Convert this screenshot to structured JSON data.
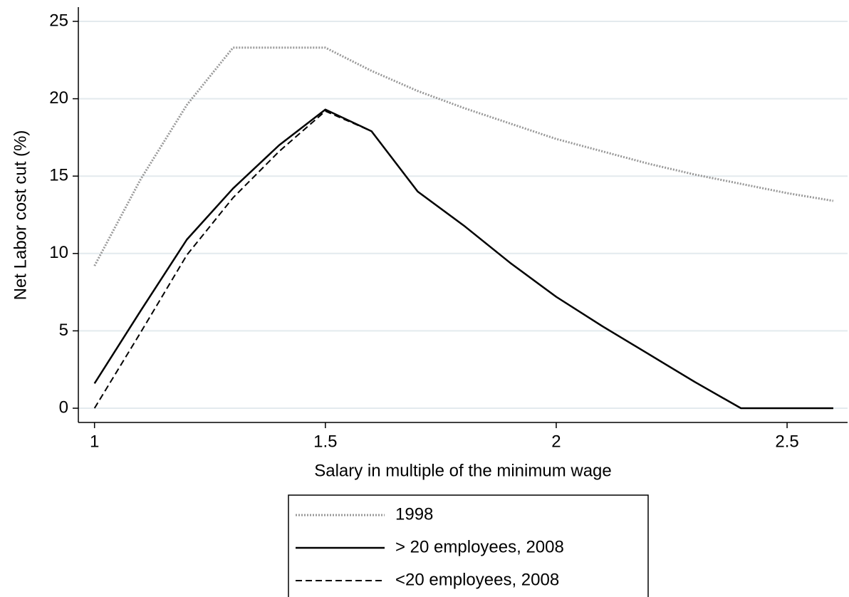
{
  "chart_data": {
    "type": "line",
    "x_label": "Salary in multiple of the minimum wage",
    "y_label": "Net Labor cost cut (%)",
    "x": [
      1.0,
      1.1,
      1.2,
      1.3,
      1.4,
      1.5,
      1.6,
      1.7,
      1.8,
      1.9,
      2.0,
      2.1,
      2.2,
      2.3,
      2.4,
      2.5,
      2.6
    ],
    "series": [
      {
        "name": "1998",
        "color": "#999999",
        "style": "dotted",
        "values": [
          9.2,
          14.8,
          19.6,
          23.3,
          23.3,
          23.3,
          21.8,
          20.5,
          19.4,
          18.4,
          17.4,
          16.6,
          15.8,
          15.1,
          14.5,
          13.9,
          13.4
        ]
      },
      {
        "name": "> 20 employees, 2008",
        "color": "#000000",
        "style": "solid",
        "values": [
          1.6,
          6.3,
          10.9,
          14.2,
          17.0,
          19.3,
          17.9,
          14.0,
          11.8,
          9.4,
          7.2,
          5.3,
          3.5,
          1.7,
          0,
          0,
          0
        ]
      },
      {
        "name": "<20 employees, 2008",
        "color": "#000000",
        "style": "dashed",
        "values": [
          0,
          4.9,
          9.9,
          13.6,
          16.6,
          19.2,
          17.9,
          14.0,
          11.8,
          9.4,
          7.2,
          5.3,
          3.5,
          1.7,
          0,
          0,
          0
        ]
      }
    ],
    "xlim": [
      0.965,
      2.631
    ],
    "ylim": [
      -0.92,
      25.92
    ],
    "xticks": [
      1,
      1.5,
      2,
      2.5
    ],
    "yticks": [
      0,
      5,
      10,
      15,
      20,
      25
    ],
    "grid": true,
    "legend": "bottom"
  }
}
